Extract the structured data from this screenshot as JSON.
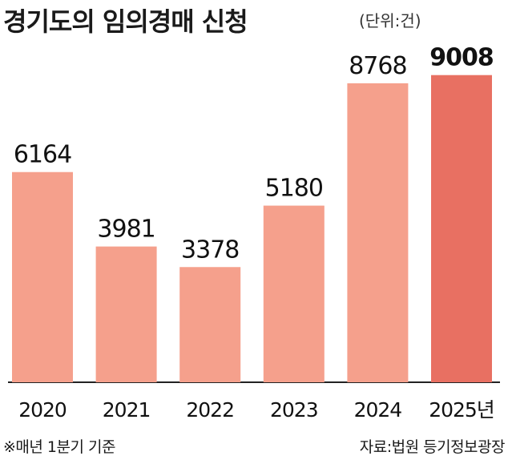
{
  "header": {
    "title": "경기도의 임의경매 신청",
    "unit": "(단위:건)"
  },
  "footer": {
    "note": "※매년 1분기 기준",
    "source": "자료:법원 등기정보광장"
  },
  "colors": {
    "bar": "#f5a08c",
    "highlight": "#e87062",
    "axis": "#222222"
  },
  "chart_data": {
    "type": "bar",
    "categories": [
      "2020",
      "2021",
      "2022",
      "2023",
      "2024",
      "2025년"
    ],
    "values": [
      6164,
      3981,
      3378,
      5180,
      8768,
      9008
    ],
    "highlight_index": 5,
    "title": "경기도의 임의경매 신청",
    "xlabel": "",
    "ylabel": "",
    "unit": "(단위:건)",
    "ylim": [
      0,
      9800
    ],
    "grid": false,
    "legend": "none"
  }
}
